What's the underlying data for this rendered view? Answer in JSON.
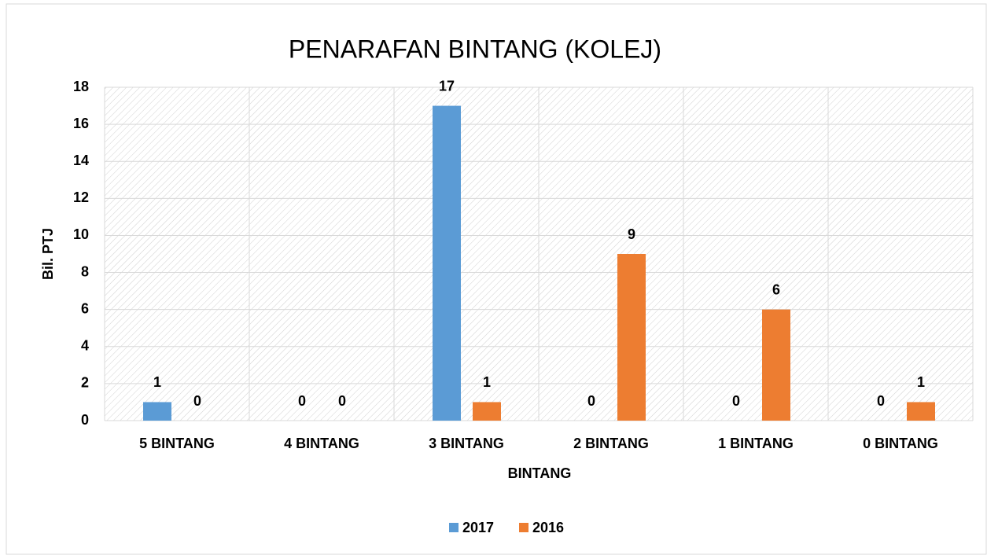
{
  "chart_data": {
    "type": "bar",
    "title": "PENARAFAN BINTANG (KOLEJ)",
    "x_label": "BINTANG",
    "y_label": "Bil. PTJ",
    "categories": [
      "5 BINTANG",
      "4 BINTANG",
      "3 BINTANG",
      "2 BINTANG",
      "1 BINTANG",
      "0 BINTANG"
    ],
    "series": [
      {
        "name": "2017",
        "color": "#5b9bd5",
        "values": [
          1,
          0,
          17,
          0,
          0,
          0
        ]
      },
      {
        "name": "2016",
        "color": "#ed7d31",
        "values": [
          0,
          0,
          1,
          9,
          6,
          1
        ]
      }
    ],
    "ylim": [
      0,
      18
    ],
    "yticks": [
      0,
      2,
      4,
      6,
      8,
      10,
      12,
      14,
      16,
      18
    ],
    "grid": true,
    "legend": "bottom"
  }
}
